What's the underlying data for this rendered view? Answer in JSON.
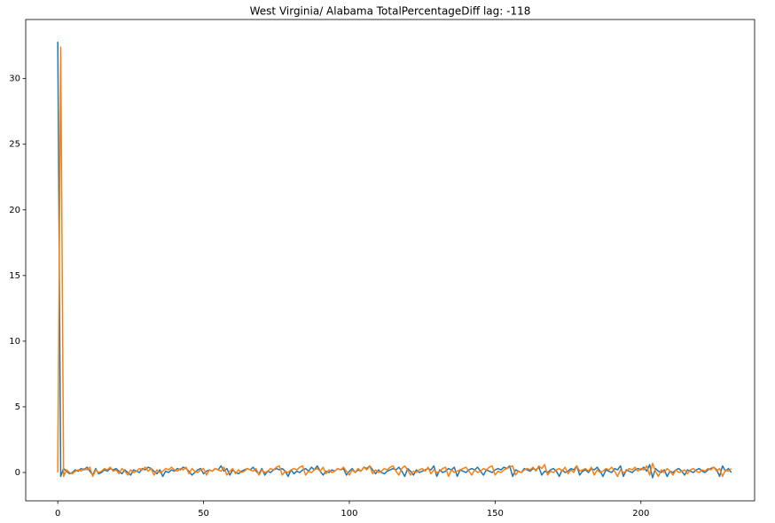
{
  "chart_data": {
    "type": "line",
    "title": "West Virginia/ Alabama TotalPercentageDiff lag: -118",
    "xlim": [
      -11,
      239
    ],
    "xticks": [
      0,
      50,
      100,
      150,
      200
    ],
    "ylim": [
      -2.16,
      34.5
    ],
    "yticks": [
      0,
      5,
      10,
      15,
      20,
      25,
      30
    ],
    "series": [
      {
        "color": "#1f77b4",
        "values": [
          32.8,
          -0.3,
          0.3,
          0.1,
          -0.1,
          0.0,
          0.2,
          0.1,
          0.3,
          0.2,
          0.4,
          0.1,
          -0.2,
          0.3,
          -0.1,
          0.0,
          0.2,
          0.1,
          0.3,
          0.2,
          0.3,
          0.1,
          -0.1,
          0.2,
          0.0,
          -0.2,
          0.2,
          0.1,
          0.0,
          0.3,
          0.2,
          0.4,
          0.3,
          0.1,
          -0.1,
          0.2,
          -0.3,
          0.1,
          0.0,
          0.2,
          0.1,
          0.3,
          0.2,
          0.4,
          0.3,
          0.1,
          -0.2,
          0.0,
          0.2,
          0.3,
          -0.1,
          0.1,
          0.2,
          0.1,
          0.3,
          0.2,
          0.5,
          0.1,
          0.3,
          -0.2,
          0.2,
          0.0,
          -0.1,
          0.1,
          0.2,
          0.3,
          0.2,
          0.4,
          0.1,
          -0.1,
          0.3,
          -0.2,
          0.1,
          0.0,
          0.2,
          0.3,
          0.2,
          0.3,
          0.1,
          -0.3,
          0.2,
          -0.1,
          0.1,
          0.0,
          0.2,
          0.3,
          0.1,
          0.4,
          0.2,
          0.5,
          0.1,
          -0.2,
          0.1,
          0.0,
          0.2,
          0.1,
          0.3,
          0.2,
          0.3,
          -0.2,
          0.1,
          0.3,
          0.0,
          0.2,
          0.1,
          0.4,
          0.3,
          0.5,
          0.2,
          -0.1,
          0.2,
          0.0,
          -0.1,
          0.1,
          0.2,
          0.3,
          0.2,
          0.4,
          0.1,
          -0.3,
          0.3,
          0.1,
          -0.2,
          0.2,
          0.0,
          0.1,
          0.2,
          0.3,
          0.2,
          0.5,
          -0.3,
          0.2,
          0.0,
          0.1,
          0.3,
          0.2,
          0.4,
          -0.3,
          0.2,
          0.1,
          0.0,
          0.2,
          0.3,
          0.2,
          0.4,
          0.1,
          -0.2,
          0.2,
          0.1,
          0.0,
          0.2,
          0.3,
          0.2,
          0.4,
          0.3,
          0.5,
          -0.3,
          0.2,
          0.1,
          0.0,
          0.3,
          0.2,
          0.1,
          0.3,
          0.2,
          0.4,
          -0.2,
          0.1,
          0.0,
          0.2,
          0.3,
          0.1,
          -0.3,
          0.2,
          0.0,
          0.1,
          0.3,
          0.2,
          0.5,
          -0.2,
          0.1,
          0.2,
          0.0,
          0.3,
          0.2,
          0.4,
          0.1,
          -0.3,
          0.2,
          0.1,
          0.0,
          0.3,
          0.2,
          0.5,
          -0.3,
          0.2,
          0.1,
          0.0,
          0.2,
          0.3,
          0.2,
          0.4,
          0.1,
          0.6,
          -0.4,
          0.3,
          0.1,
          0.0,
          0.2,
          -0.3,
          0.1,
          0.0,
          0.2,
          0.3,
          0.1,
          -0.2,
          0.2,
          0.1,
          0.0,
          0.2,
          0.3,
          0.1,
          0.0,
          0.2,
          0.3,
          0.4,
          0.2,
          -0.3,
          0.5,
          0.1,
          0.3,
          0.0
        ]
      },
      {
        "color": "#ff7f0e",
        "values": [
          0.0,
          32.4,
          -0.3,
          0.2,
          0.0,
          -0.1,
          0.1,
          0.2,
          0.1,
          0.3,
          0.2,
          0.4,
          -0.3,
          0.2,
          0.0,
          0.1,
          0.3,
          0.2,
          0.4,
          0.1,
          0.2,
          -0.1,
          0.3,
          0.1,
          -0.2,
          0.2,
          0.0,
          0.1,
          0.3,
          0.2,
          0.4,
          0.1,
          0.3,
          -0.2,
          0.2,
          0.0,
          0.1,
          0.3,
          0.2,
          0.4,
          0.2,
          0.1,
          0.3,
          0.2,
          0.4,
          -0.1,
          0.3,
          0.1,
          0.0,
          0.2,
          0.3,
          -0.2,
          0.2,
          0.1,
          0.3,
          0.2,
          0.1,
          0.4,
          -0.2,
          0.1,
          0.3,
          -0.1,
          0.2,
          0.0,
          0.1,
          0.3,
          0.2,
          0.1,
          0.3,
          -0.2,
          0.2,
          0.0,
          0.1,
          0.3,
          0.2,
          0.4,
          0.5,
          -0.2,
          0.1,
          0.0,
          0.2,
          0.3,
          0.2,
          0.4,
          0.5,
          -0.2,
          0.1,
          0.0,
          0.2,
          0.3,
          0.1,
          0.4,
          -0.1,
          0.2,
          0.0,
          0.1,
          0.3,
          0.2,
          0.4,
          0.1,
          -0.2,
          0.2,
          0.0,
          0.3,
          0.1,
          0.4,
          0.2,
          0.5,
          -0.1,
          0.2,
          0.0,
          0.1,
          0.3,
          0.2,
          0.4,
          0.5,
          0.1,
          -0.2,
          0.3,
          0.5,
          0.2,
          -0.2,
          0.1,
          0.0,
          0.2,
          0.3,
          0.1,
          0.4,
          -0.1,
          0.2,
          0.0,
          0.1,
          0.3,
          0.4,
          -0.3,
          0.2,
          0.0,
          0.1,
          0.2,
          0.3,
          0.4,
          0.1,
          -0.2,
          0.2,
          0.0,
          0.1,
          0.3,
          0.2,
          0.4,
          0.5,
          -0.2,
          0.1,
          0.0,
          0.2,
          0.3,
          0.4,
          0.5,
          -0.2,
          0.1,
          0.0,
          0.2,
          0.3,
          0.2,
          0.4,
          0.1,
          0.5,
          0.3,
          0.6,
          -0.2,
          0.1,
          0.0,
          0.2,
          0.3,
          0.1,
          0.4,
          -0.1,
          0.2,
          0.0,
          0.5,
          0.1,
          0.2,
          0.3,
          0.1,
          0.4,
          -0.2,
          0.2,
          0.0,
          0.1,
          0.3,
          0.2,
          0.4,
          0.1,
          -0.3,
          0.2,
          0.0,
          0.1,
          0.3,
          0.2,
          0.4,
          0.1,
          0.3,
          0.2,
          0.5,
          -0.2,
          0.7,
          0.1,
          -0.3,
          0.2,
          0.0,
          0.3,
          0.1,
          -0.2,
          0.2,
          0.0,
          0.1,
          0.2,
          -0.1,
          0.2,
          0.3,
          0.1,
          0.0,
          0.2,
          0.1,
          0.3,
          0.2,
          0.4,
          0.1,
          0.3,
          -0.3,
          0.2,
          0.1,
          0.3
        ]
      }
    ]
  }
}
